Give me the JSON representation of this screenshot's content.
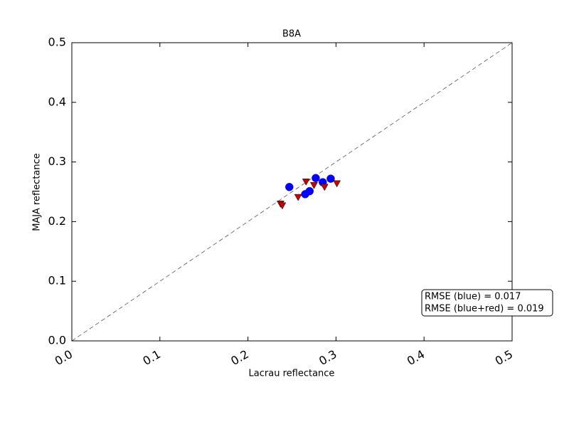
{
  "chart_data": {
    "type": "scatter",
    "title": "B8A",
    "x_label": "Lacrau reflectance",
    "y_label": "MAJA reflectance",
    "xlim": [
      0,
      0.5
    ],
    "ylim": [
      0,
      0.5
    ],
    "xticks": [
      {
        "value": 0,
        "label": "0.0"
      },
      0.1,
      0.2,
      0.3,
      0.4,
      0.5
    ],
    "yticks": [
      {
        "value": 0,
        "label": "0.0"
      },
      0.1,
      0.2,
      0.3,
      0.4,
      0.5
    ],
    "series": [
      {
        "color": "#0000ff",
        "marker": "circle",
        "x": [
          0.247,
          0.265,
          0.27,
          0.277,
          0.285,
          0.294
        ],
        "values": [
          0.258,
          0.246,
          0.251,
          0.273,
          0.266,
          0.272
        ]
      },
      {
        "color": "#cc0000",
        "marker": "triangle-down",
        "x": [
          0.237,
          0.239,
          0.257,
          0.266,
          0.275,
          0.287,
          0.301
        ],
        "values": [
          0.23,
          0.227,
          0.241,
          0.267,
          0.261,
          0.258,
          0.264
        ]
      }
    ],
    "annotations": [
      "RMSE (blue) = 0.017",
      "RMSE (blue+red) = 0.019"
    ]
  }
}
